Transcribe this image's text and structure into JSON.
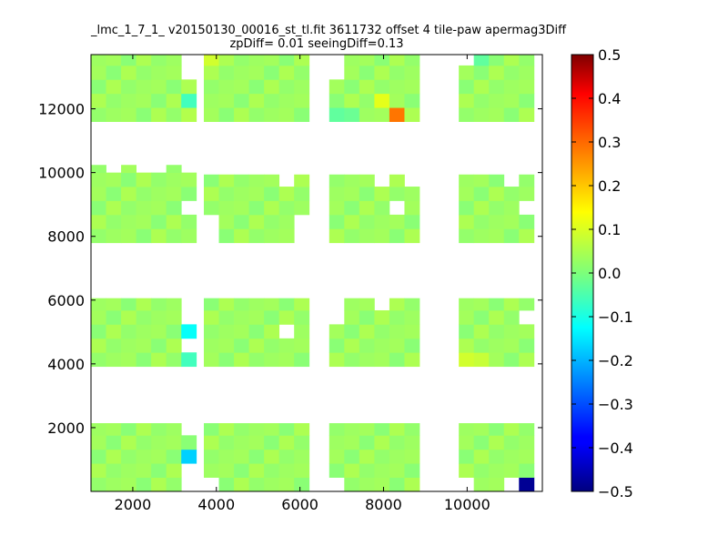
{
  "chart_data": {
    "type": "heatmap",
    "title": "_lmc_1_7_1_ v20150130_00016_st_tl.fit 3611732 offset 4 tile-paw apermag3Diff",
    "subtitle": "zpDiff= 0.01 seeingDiff=0.13",
    "xlabel": "",
    "ylabel": "",
    "xlim": [
      1000,
      11800
    ],
    "ylim": [
      0,
      13700
    ],
    "x_ticks": [
      2000,
      4000,
      6000,
      8000,
      10000
    ],
    "y_ticks": [
      2000,
      4000,
      6000,
      8000,
      10000,
      12000
    ],
    "colormap": "jet",
    "colorbar": {
      "vmin": -0.5,
      "vmax": 0.5,
      "ticks": [
        "0.5",
        "0.4",
        "0.3",
        "0.2",
        "0.1",
        "0.0",
        "−0.1",
        "−0.2",
        "−0.3",
        "−0.4",
        "−0.5"
      ]
    },
    "grid": false,
    "cell_size": [
      360,
      440
    ],
    "x_columns": [
      1000,
      1360,
      1720,
      2080,
      2440,
      2800,
      3160,
      3700,
      4060,
      4420,
      4780,
      5140,
      5500,
      5860,
      6700,
      7060,
      7420,
      7780,
      8140,
      8500,
      9800,
      10160,
      10520,
      10880,
      11240
    ],
    "blocks": [
      {
        "x0": 1000,
        "x1": 3520,
        "y0": 0,
        "y1": 2140
      },
      {
        "x0": 3700,
        "x1": 6220,
        "y0": 0,
        "y1": 2140
      },
      {
        "x0": 6700,
        "x1": 9220,
        "y0": 0,
        "y1": 2140
      },
      {
        "x0": 9800,
        "x1": 11800,
        "y0": 0,
        "y1": 2140
      },
      {
        "x0": 1000,
        "x1": 3520,
        "y0": 3920,
        "y1": 6060
      },
      {
        "x0": 3700,
        "x1": 6220,
        "y0": 3920,
        "y1": 6060
      },
      {
        "x0": 6700,
        "x1": 9220,
        "y0": 3920,
        "y1": 6060
      },
      {
        "x0": 9800,
        "x1": 11800,
        "y0": 3920,
        "y1": 6060
      },
      {
        "x0": 1000,
        "x1": 3520,
        "y0": 7800,
        "y1": 10240
      },
      {
        "x0": 3700,
        "x1": 6220,
        "y0": 7800,
        "y1": 9940
      },
      {
        "x0": 6700,
        "x1": 9220,
        "y0": 7800,
        "y1": 9940
      },
      {
        "x0": 9800,
        "x1": 11800,
        "y0": 7800,
        "y1": 9940
      },
      {
        "x0": 1000,
        "x1": 3520,
        "y0": 11600,
        "y1": 13700
      },
      {
        "x0": 3700,
        "x1": 6220,
        "y0": 11600,
        "y1": 13700
      },
      {
        "x0": 6700,
        "x1": 9220,
        "y0": 11600,
        "y1": 13700
      },
      {
        "x0": 9800,
        "x1": 11800,
        "y0": 11600,
        "y1": 13700
      }
    ],
    "holes": [
      [
        3160,
        0,
        3520,
        880
      ],
      [
        3160,
        1760,
        3520,
        2140
      ],
      [
        3700,
        0,
        4060,
        440
      ],
      [
        6700,
        0,
        7060,
        440
      ],
      [
        9800,
        0,
        10160,
        440
      ],
      [
        10880,
        0,
        11240,
        440
      ],
      [
        3160,
        4360,
        3520,
        4800
      ],
      [
        3160,
        5240,
        3520,
        6060
      ],
      [
        5500,
        4800,
        5860,
        5240
      ],
      [
        6700,
        5240,
        7060,
        6060
      ],
      [
        7780,
        5620,
        8140,
        6060
      ],
      [
        11240,
        5240,
        11800,
        5620
      ],
      [
        1360,
        9800,
        1720,
        10240
      ],
      [
        2080,
        9800,
        2800,
        10240
      ],
      [
        3160,
        9800,
        3520,
        10240
      ],
      [
        3160,
        8360,
        3520,
        8920
      ],
      [
        3700,
        7800,
        4060,
        8360
      ],
      [
        5860,
        7800,
        6220,
        8360
      ],
      [
        5500,
        9360,
        5860,
        9940
      ],
      [
        7780,
        9360,
        8140,
        9940
      ],
      [
        8500,
        9360,
        9220,
        9940
      ],
      [
        8140,
        8360,
        8500,
        8800
      ],
      [
        10880,
        9360,
        11240,
        9940
      ],
      [
        11240,
        8360,
        11800,
        8800
      ],
      [
        3160,
        12920,
        3520,
        13700
      ],
      [
        6700,
        12920,
        7060,
        13700
      ],
      [
        9800,
        13360,
        10160,
        13700
      ]
    ],
    "base_values": [
      0.02,
      0.035,
      0.045,
      0.03,
      0.01
    ],
    "special_cells": [
      {
        "x": 1000,
        "y": 9800,
        "v": 0.11
      },
      {
        "x": 2800,
        "y": 9800,
        "v": 0.07
      },
      {
        "x": 3160,
        "y": 4800,
        "v": -0.12
      },
      {
        "x": 3160,
        "y": 3920,
        "v": -0.06
      },
      {
        "x": 3160,
        "y": 12040,
        "v": -0.06
      },
      {
        "x": 3160,
        "y": 11600,
        "v": 0.05
      },
      {
        "x": 3160,
        "y": 880,
        "v": -0.17
      },
      {
        "x": 3160,
        "y": 440,
        "v": -0.15
      },
      {
        "x": 8140,
        "y": 11600,
        "v": 0.26
      },
      {
        "x": 7780,
        "y": 12040,
        "v": 0.1
      },
      {
        "x": 11240,
        "y": 0,
        "v": -0.48
      },
      {
        "x": 9800,
        "y": 3920,
        "v": 0.08
      },
      {
        "x": 10160,
        "y": 3920,
        "v": 0.07
      },
      {
        "x": 3700,
        "y": 13360,
        "v": 0.08
      },
      {
        "x": 6700,
        "y": 11600,
        "v": -0.03
      },
      {
        "x": 7060,
        "y": 11600,
        "v": -0.02
      },
      {
        "x": 10160,
        "y": 13360,
        "v": -0.03
      },
      {
        "x": 10520,
        "y": 8800,
        "v": 0.06
      },
      {
        "x": 5860,
        "y": 8920,
        "v": 0.07
      },
      {
        "x": 5860,
        "y": 7800,
        "v": 0.07
      },
      {
        "x": 7420,
        "y": 9360,
        "v": -0.01
      },
      {
        "x": 8500,
        "y": 8360,
        "v": -0.03
      }
    ]
  }
}
